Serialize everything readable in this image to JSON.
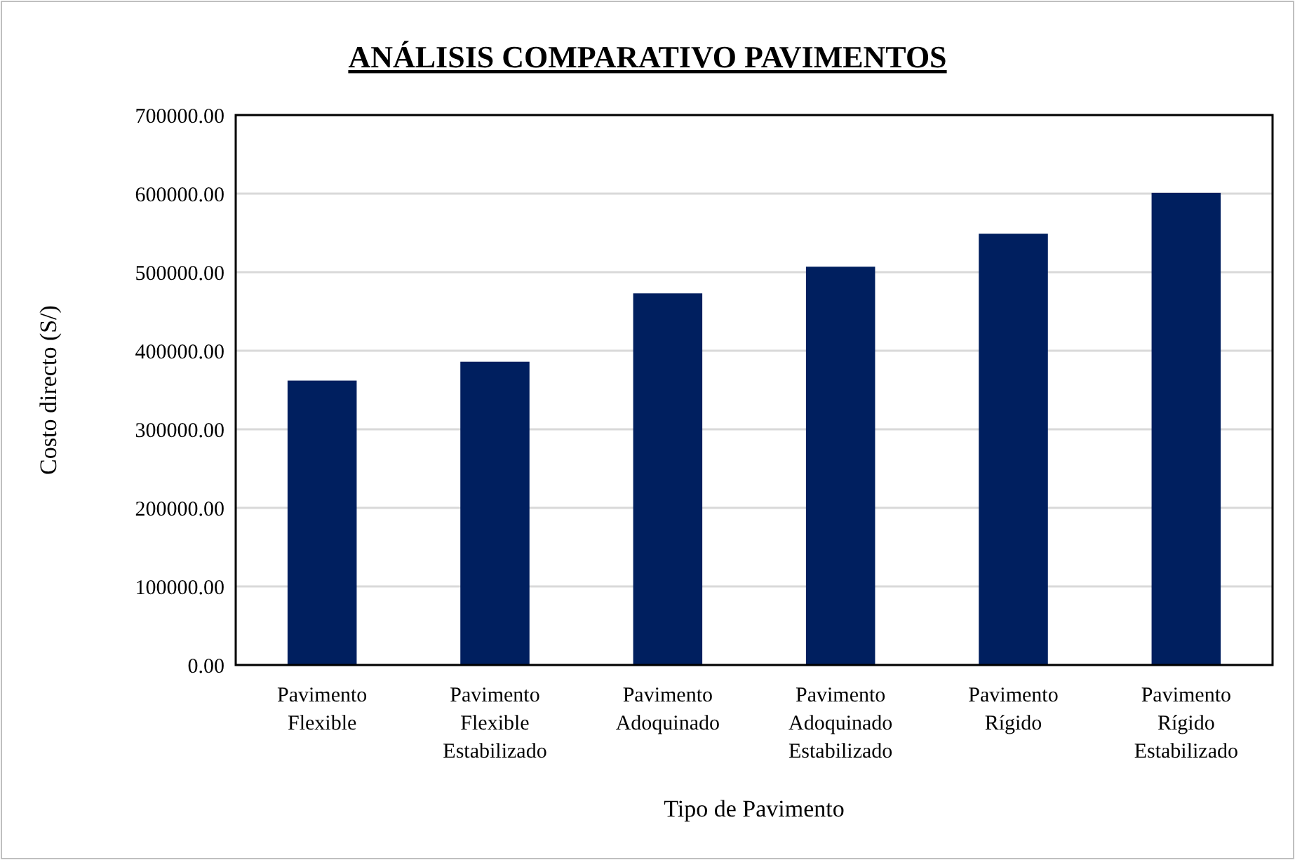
{
  "chart_data": {
    "type": "bar",
    "title": "ANÁLISIS COMPARATIVO PAVIMENTOS",
    "xlabel": "Tipo de Pavimento",
    "ylabel": "Costo directo (S/)",
    "categories": [
      "Pavimento Flexible",
      "Pavimento Flexible Estabilizado",
      "Pavimento Adoquinado",
      "Pavimento Adoquinado Estabilizado",
      "Pavimento Rígido",
      "Pavimento Rígido Estabilizado"
    ],
    "values": [
      362000,
      386000,
      473000,
      507000,
      549000,
      601000
    ],
    "color": "#001f5f",
    "ylim": [
      0,
      700000
    ],
    "yticks": [
      {
        "value": 0,
        "label": "0.00"
      },
      {
        "value": 100000,
        "label": "100000.00"
      },
      {
        "value": 200000,
        "label": "200000.00"
      },
      {
        "value": 300000,
        "label": "300000.00"
      },
      {
        "value": 400000,
        "label": "400000.00"
      },
      {
        "value": 500000,
        "label": "500000.00"
      },
      {
        "value": 600000,
        "label": "600000.00"
      },
      {
        "value": 700000,
        "label": "700000.00"
      }
    ],
    "grid": "y"
  }
}
